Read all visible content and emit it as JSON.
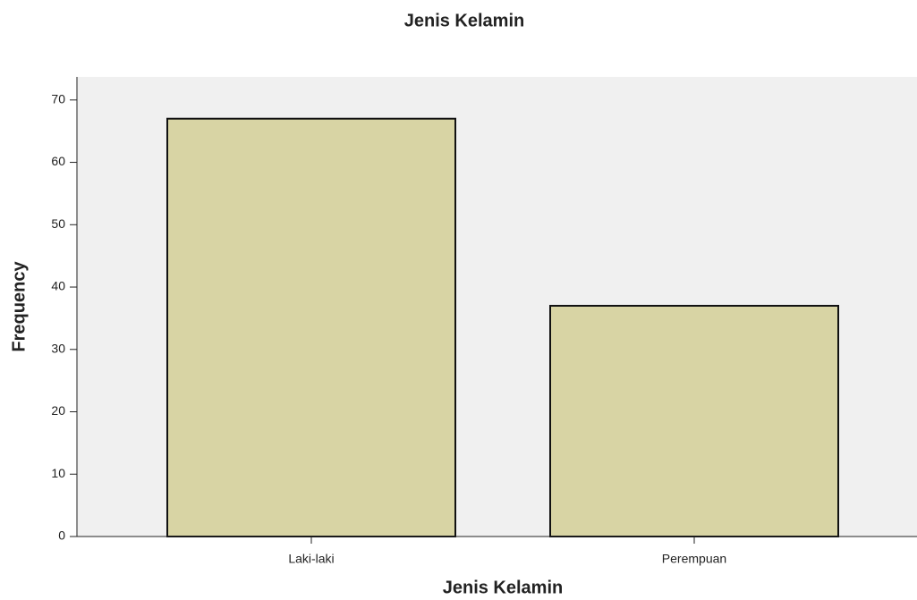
{
  "chart_data": {
    "type": "bar",
    "title": "Jenis Kelamin",
    "x_label": "Jenis Kelamin",
    "y_label": "Frequency",
    "categories": [
      "Laki-laki",
      "Perempuan"
    ],
    "values": [
      67,
      37
    ],
    "color": "#d8d4a4",
    "ylim": [
      0,
      73.7
    ],
    "yticks": [
      0,
      10,
      20,
      30,
      40,
      50,
      60,
      70
    ],
    "grid": false
  }
}
